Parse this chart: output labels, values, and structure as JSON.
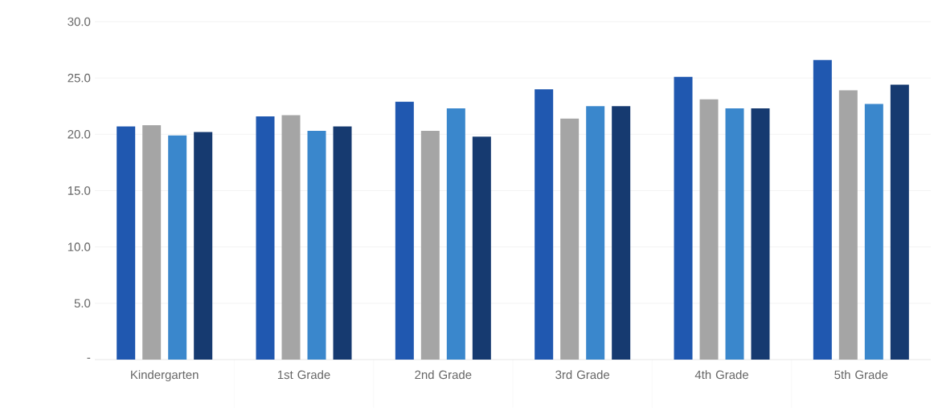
{
  "chart_data": {
    "type": "bar",
    "categories": [
      "Kindergarten",
      "1st Grade",
      "2nd Grade",
      "3rd Grade",
      "4th Grade",
      "5th Grade"
    ],
    "series": [
      {
        "color": "#2058b0",
        "values": [
          20.7,
          21.6,
          22.9,
          24.0,
          25.1,
          26.6
        ]
      },
      {
        "color": "#a5a5a5",
        "values": [
          20.8,
          21.7,
          20.3,
          21.4,
          23.1,
          23.9
        ]
      },
      {
        "color": "#3a87cc",
        "values": [
          19.9,
          20.3,
          22.3,
          22.5,
          22.3,
          22.7
        ]
      },
      {
        "color": "#163a70",
        "values": [
          20.2,
          20.7,
          19.8,
          22.5,
          22.3,
          24.4
        ]
      }
    ],
    "ylim": [
      0,
      30
    ],
    "yticks": [
      {
        "value": 0,
        "label": "-"
      },
      {
        "value": 5,
        "label": "5.0"
      },
      {
        "value": 10,
        "label": "10.0"
      },
      {
        "value": 15,
        "label": "15.0"
      },
      {
        "value": 20,
        "label": "20.0"
      },
      {
        "value": 25,
        "label": "25.0"
      },
      {
        "value": 30,
        "label": "30.0"
      }
    ],
    "grid": "y"
  }
}
